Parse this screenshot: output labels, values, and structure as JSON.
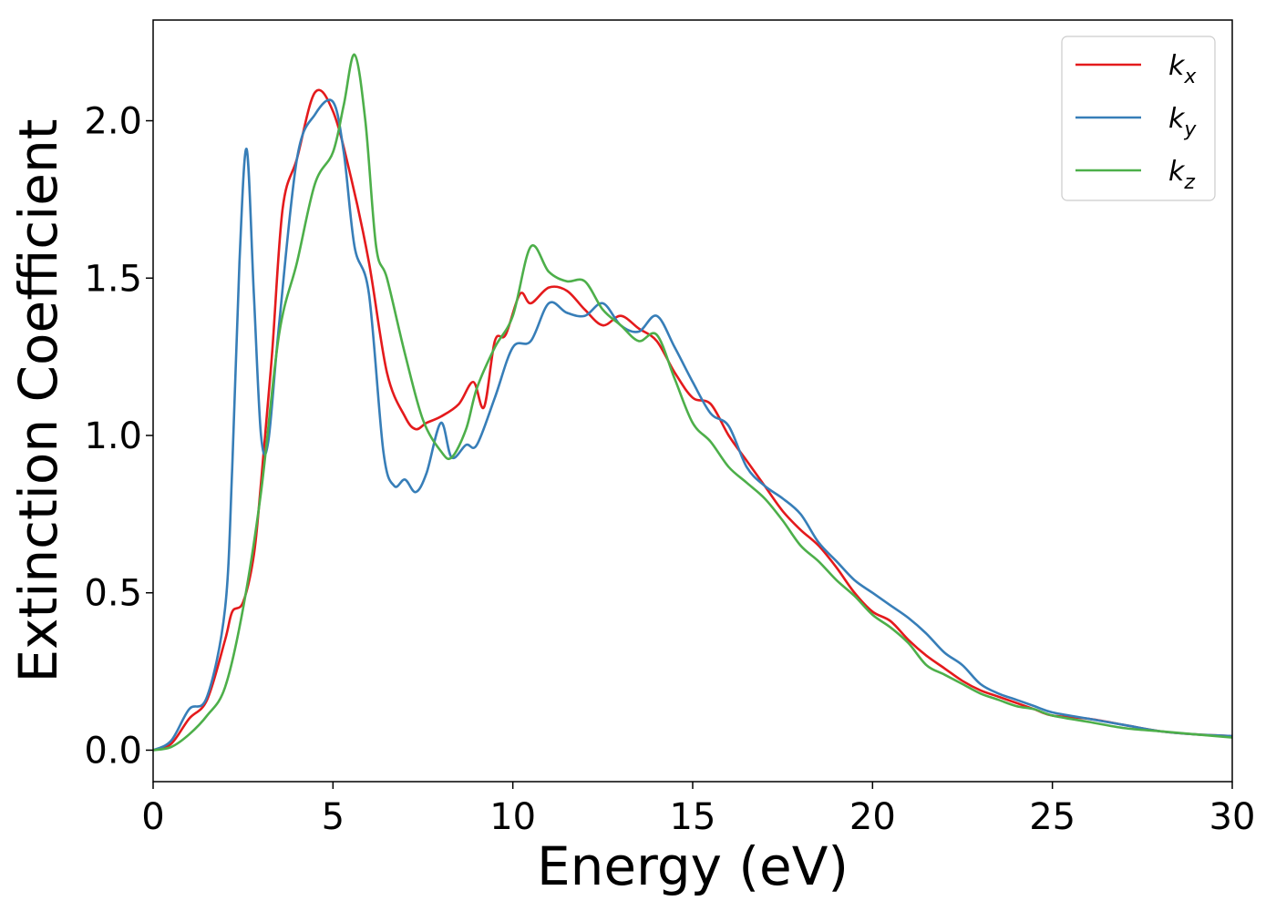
{
  "chart_data": {
    "type": "line",
    "xlabel": "Energy (eV)",
    "ylabel": "Extinction Coefficient",
    "xlim": [
      0,
      30
    ],
    "ylim": [
      -0.1,
      2.32
    ],
    "xticks": [
      0,
      5,
      10,
      15,
      20,
      25,
      30
    ],
    "xtick_labels": [
      "0",
      "5",
      "10",
      "15",
      "20",
      "25",
      "30"
    ],
    "yticks": [
      0.0,
      0.5,
      1.0,
      1.5,
      2.0
    ],
    "ytick_labels": [
      "0.0",
      "0.5",
      "1.0",
      "1.5",
      "2.0"
    ],
    "grid": false,
    "legend_position": "top-right",
    "series": [
      {
        "name": "k_x",
        "label_main": "k",
        "label_sub": "x",
        "color": "#e41a1c",
        "x": [
          0,
          0.5,
          1.0,
          1.5,
          2.0,
          2.2,
          2.5,
          2.8,
          3.0,
          3.3,
          3.6,
          4.0,
          4.5,
          5.0,
          5.5,
          6.0,
          6.5,
          7.0,
          7.3,
          7.6,
          8.0,
          8.5,
          8.9,
          9.2,
          9.5,
          9.8,
          10.2,
          10.5,
          11.0,
          11.5,
          12.0,
          12.5,
          13.0,
          13.5,
          14.0,
          14.5,
          15.0,
          15.5,
          16.0,
          16.5,
          17.0,
          17.5,
          18.0,
          18.5,
          19.0,
          19.5,
          20.0,
          20.5,
          21.0,
          21.5,
          22.0,
          22.5,
          23.0,
          23.5,
          24.0,
          24.5,
          25.0,
          26.0,
          27.0,
          28.0,
          29.0,
          30.0
        ],
        "y": [
          0.0,
          0.02,
          0.1,
          0.16,
          0.35,
          0.44,
          0.47,
          0.62,
          0.85,
          1.25,
          1.72,
          1.88,
          2.09,
          2.03,
          1.82,
          1.55,
          1.2,
          1.06,
          1.02,
          1.04,
          1.06,
          1.1,
          1.17,
          1.09,
          1.3,
          1.32,
          1.45,
          1.42,
          1.47,
          1.46,
          1.4,
          1.35,
          1.38,
          1.34,
          1.3,
          1.2,
          1.12,
          1.1,
          1.0,
          0.92,
          0.84,
          0.76,
          0.7,
          0.65,
          0.58,
          0.5,
          0.44,
          0.41,
          0.35,
          0.3,
          0.26,
          0.22,
          0.19,
          0.17,
          0.15,
          0.13,
          0.11,
          0.1,
          0.08,
          0.06,
          0.05,
          0.045
        ]
      },
      {
        "name": "k_y",
        "label_main": "k",
        "label_sub": "y",
        "color": "#377eb8",
        "x": [
          0,
          0.5,
          1.0,
          1.5,
          2.0,
          2.2,
          2.4,
          2.6,
          2.8,
          3.0,
          3.2,
          3.5,
          4.0,
          4.5,
          5.0,
          5.3,
          5.6,
          6.0,
          6.4,
          6.7,
          7.0,
          7.3,
          7.6,
          8.0,
          8.3,
          8.7,
          9.0,
          9.5,
          10.0,
          10.5,
          11.0,
          11.5,
          12.0,
          12.5,
          13.0,
          13.5,
          14.0,
          14.5,
          15.0,
          15.5,
          16.0,
          16.5,
          17.0,
          17.5,
          18.0,
          18.5,
          19.0,
          19.5,
          20.0,
          20.5,
          21.0,
          21.5,
          22.0,
          22.5,
          23.0,
          23.5,
          24.0,
          24.5,
          25.0,
          26.0,
          27.0,
          28.0,
          29.0,
          30.0
        ],
        "y": [
          0.0,
          0.03,
          0.13,
          0.17,
          0.45,
          0.9,
          1.55,
          1.91,
          1.45,
          1.0,
          0.98,
          1.35,
          1.88,
          2.02,
          2.06,
          1.9,
          1.6,
          1.45,
          0.95,
          0.84,
          0.86,
          0.82,
          0.88,
          1.04,
          0.93,
          0.97,
          0.97,
          1.12,
          1.28,
          1.3,
          1.42,
          1.39,
          1.38,
          1.42,
          1.35,
          1.33,
          1.38,
          1.28,
          1.17,
          1.07,
          1.03,
          0.9,
          0.84,
          0.8,
          0.75,
          0.66,
          0.6,
          0.54,
          0.5,
          0.46,
          0.42,
          0.37,
          0.31,
          0.27,
          0.21,
          0.18,
          0.16,
          0.14,
          0.12,
          0.1,
          0.08,
          0.06,
          0.05,
          0.045
        ]
      },
      {
        "name": "k_z",
        "label_main": "k",
        "label_sub": "z",
        "color": "#4daf4a",
        "x": [
          0,
          0.5,
          1.0,
          1.5,
          2.0,
          2.5,
          3.0,
          3.5,
          4.0,
          4.5,
          5.0,
          5.3,
          5.6,
          5.9,
          6.2,
          6.5,
          7.0,
          7.5,
          8.0,
          8.3,
          8.7,
          9.0,
          9.5,
          10.0,
          10.5,
          11.0,
          11.5,
          12.0,
          12.5,
          13.0,
          13.5,
          14.0,
          14.5,
          15.0,
          15.5,
          16.0,
          16.5,
          17.0,
          17.5,
          18.0,
          18.5,
          19.0,
          19.5,
          20.0,
          20.5,
          21.0,
          21.5,
          22.0,
          22.5,
          23.0,
          23.5,
          24.0,
          24.5,
          25.0,
          26.0,
          27.0,
          28.0,
          29.0,
          30.0
        ],
        "y": [
          0.0,
          0.01,
          0.05,
          0.11,
          0.2,
          0.45,
          0.82,
          1.32,
          1.55,
          1.8,
          1.9,
          2.05,
          2.21,
          2.0,
          1.6,
          1.5,
          1.26,
          1.05,
          0.95,
          0.93,
          1.02,
          1.15,
          1.28,
          1.38,
          1.6,
          1.52,
          1.49,
          1.49,
          1.4,
          1.35,
          1.3,
          1.32,
          1.18,
          1.04,
          0.98,
          0.9,
          0.85,
          0.8,
          0.73,
          0.65,
          0.6,
          0.54,
          0.49,
          0.43,
          0.39,
          0.34,
          0.27,
          0.24,
          0.21,
          0.18,
          0.16,
          0.14,
          0.13,
          0.11,
          0.09,
          0.07,
          0.06,
          0.05,
          0.04
        ]
      }
    ]
  }
}
